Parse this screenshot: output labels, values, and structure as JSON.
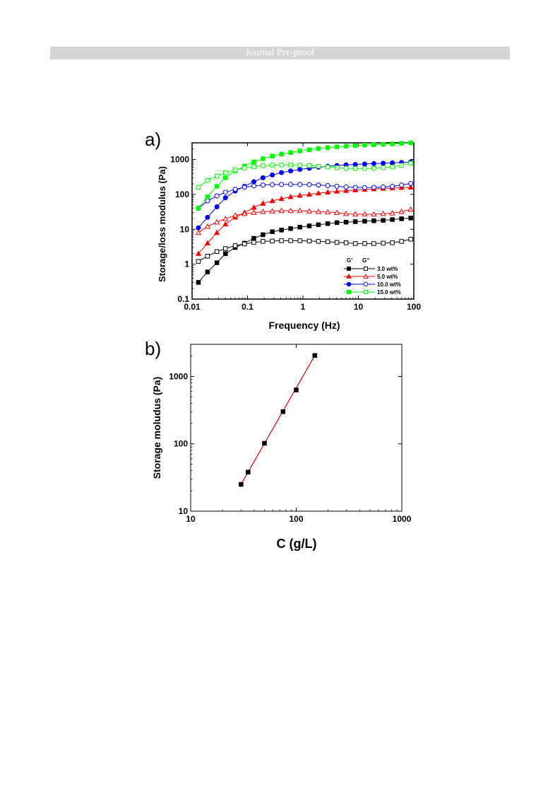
{
  "header": {
    "banner_text": "Journal Pre-proof"
  },
  "chart_data": [
    {
      "panel_label": "a)",
      "type": "line",
      "xlabel": "Frequency (Hz)",
      "ylabel": "Storage/loss modulus (Pa)",
      "xscale": "log",
      "yscale": "log",
      "xlim": [
        0.01,
        100
      ],
      "ylim": [
        0.1,
        3000
      ],
      "xticks": [
        "0.01",
        "0.1",
        "1",
        "10",
        "100"
      ],
      "yticks": [
        "0.1",
        "1",
        "10",
        "100",
        "1000"
      ],
      "legend": {
        "position": "bottom-right",
        "header_gp": "G'",
        "header_gpp": "G''"
      },
      "x": [
        0.013,
        0.019,
        0.028,
        0.04,
        0.06,
        0.088,
        0.13,
        0.19,
        0.28,
        0.41,
        0.6,
        0.88,
        1.3,
        1.9,
        2.8,
        4.1,
        6.0,
        8.8,
        13,
        19,
        28,
        41,
        60,
        88
      ],
      "series": [
        {
          "name": "3.0 wt%",
          "color": "#000000",
          "modulus": "G'",
          "filled": true,
          "marker": "square",
          "values": [
            0.3,
            0.6,
            1.1,
            2.0,
            3.0,
            4.0,
            5.5,
            7.0,
            8.5,
            9.5,
            10.5,
            11.5,
            12.5,
            13.5,
            14.5,
            15.5,
            16.0,
            16.5,
            17.0,
            17.5,
            18.0,
            19.0,
            20.0,
            21.0
          ]
        },
        {
          "name": "3.0 wt%",
          "color": "#000000",
          "modulus": "G''",
          "filled": false,
          "marker": "square",
          "values": [
            1.2,
            1.7,
            2.3,
            2.8,
            3.4,
            3.8,
            4.2,
            4.5,
            4.6,
            4.7,
            4.7,
            4.7,
            4.6,
            4.5,
            4.4,
            4.2,
            4.1,
            3.9,
            3.9,
            3.9,
            4.0,
            4.1,
            4.5,
            5.2
          ]
        },
        {
          "name": "5.0 wt%",
          "color": "#ff0000",
          "modulus": "G'",
          "filled": true,
          "marker": "triangle",
          "values": [
            2.0,
            4.0,
            8.0,
            14.0,
            22.0,
            30.0,
            42.0,
            55.0,
            65.0,
            75.0,
            85.0,
            93.0,
            100.0,
            108.0,
            115.0,
            122.0,
            128.0,
            133.0,
            138.0,
            143.0,
            148.0,
            152.0,
            156.0,
            160.0
          ]
        },
        {
          "name": "5.0 wt%",
          "color": "#ff0000",
          "modulus": "G''",
          "filled": false,
          "marker": "triangle",
          "values": [
            8.0,
            12.0,
            16.0,
            20.0,
            25.0,
            28.0,
            30.0,
            32.0,
            33.0,
            34.0,
            34.0,
            34.0,
            33.0,
            32.0,
            31.0,
            30.0,
            28.0,
            27.0,
            27.0,
            27.0,
            28.0,
            29.0,
            32.0,
            37.0
          ]
        },
        {
          "name": "10.0 wt%",
          "color": "#0000ff",
          "modulus": "G'",
          "filled": true,
          "marker": "circle",
          "values": [
            11.0,
            22.0,
            44.0,
            80.0,
            125.0,
            170.0,
            230.0,
            300.0,
            360.0,
            420.0,
            470.0,
            520.0,
            560.0,
            600.0,
            640.0,
            670.0,
            700.0,
            720.0,
            740.0,
            760.0,
            780.0,
            800.0,
            820.0,
            850.0
          ]
        },
        {
          "name": "10.0 wt%",
          "color": "#0000ff",
          "modulus": "G''",
          "filled": false,
          "marker": "circle",
          "values": [
            40.0,
            65.0,
            90.0,
            115.0,
            140.0,
            160.0,
            175.0,
            185.0,
            190.0,
            192.0,
            193.0,
            192.0,
            190.0,
            185.0,
            178.0,
            170.0,
            163.0,
            158.0,
            157.0,
            158.0,
            163.0,
            170.0,
            185.0,
            205.0
          ]
        },
        {
          "name": "15.0 wt%",
          "color": "#00ff00",
          "modulus": "G'",
          "filled": true,
          "marker": "square",
          "values": [
            40.0,
            85.0,
            170.0,
            300.0,
            470.0,
            650.0,
            850.0,
            1050.0,
            1250.0,
            1420.0,
            1580.0,
            1750.0,
            1900.0,
            2050.0,
            2180.0,
            2300.0,
            2400.0,
            2500.0,
            2580.0,
            2650.0,
            2720.0,
            2800.0,
            2900.0,
            3000.0
          ]
        },
        {
          "name": "15.0 wt%",
          "color": "#00ff00",
          "modulus": "G''",
          "filled": false,
          "marker": "square",
          "values": [
            160.0,
            250.0,
            330.0,
            420.0,
            500.0,
            570.0,
            620.0,
            660.0,
            690.0,
            700.0,
            700.0,
            690.0,
            670.0,
            640.0,
            610.0,
            580.0,
            560.0,
            550.0,
            550.0,
            560.0,
            580.0,
            610.0,
            680.0,
            780.0
          ]
        }
      ]
    },
    {
      "panel_label": "b)",
      "type": "scatter",
      "xlabel": "C (g/L)",
      "ylabel": "Storage moludus (Pa)",
      "xscale": "log",
      "yscale": "log",
      "xlim": [
        10,
        1000
      ],
      "ylim": [
        10,
        3000
      ],
      "xticks": [
        "10",
        "100",
        "1000"
      ],
      "yticks": [
        "10",
        "100",
        "1000"
      ],
      "points": {
        "x": [
          30,
          35,
          50,
          75,
          100,
          150
        ],
        "y": [
          25,
          38,
          102,
          300,
          630,
          2050
        ]
      },
      "marker_color": "#000000",
      "fit_line": {
        "color": "#e01010",
        "x": [
          30,
          150
        ],
        "y": [
          25,
          2050
        ]
      }
    }
  ]
}
